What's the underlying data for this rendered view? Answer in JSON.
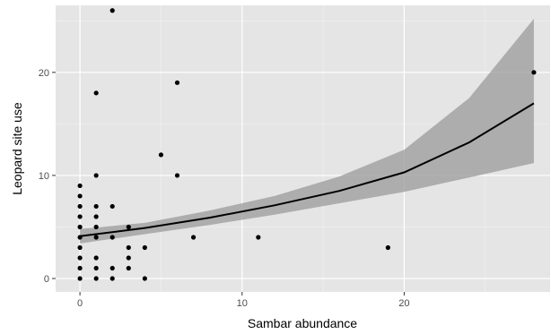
{
  "chart_data": {
    "type": "scatter",
    "xlabel": "Sambar abundance",
    "ylabel": "Leopard site use",
    "xlim": [
      -1.5,
      29
    ],
    "ylim": [
      -1.3,
      26.5
    ],
    "x_ticks": [
      0,
      10,
      20
    ],
    "y_ticks": [
      0,
      10,
      20
    ],
    "x_tick_labels": [
      "0",
      "10",
      "20"
    ],
    "y_tick_labels": [
      "0",
      "10",
      "20"
    ],
    "grid": true,
    "colors": {
      "panel": "#e5e5e5",
      "grid_major": "#ffffff",
      "grid_minor": "#f2f2f2",
      "points": "#000000",
      "ribbon": "#999999",
      "line": "#000000"
    },
    "points": [
      {
        "x": 0,
        "y": 0
      },
      {
        "x": 0,
        "y": 1
      },
      {
        "x": 0,
        "y": 2
      },
      {
        "x": 0,
        "y": 3
      },
      {
        "x": 0,
        "y": 4
      },
      {
        "x": 0,
        "y": 5
      },
      {
        "x": 0,
        "y": 6
      },
      {
        "x": 0,
        "y": 7
      },
      {
        "x": 0,
        "y": 8
      },
      {
        "x": 0,
        "y": 9
      },
      {
        "x": 1,
        "y": 0
      },
      {
        "x": 1,
        "y": 1
      },
      {
        "x": 1,
        "y": 2
      },
      {
        "x": 1,
        "y": 4
      },
      {
        "x": 1,
        "y": 5
      },
      {
        "x": 1,
        "y": 6
      },
      {
        "x": 1,
        "y": 7
      },
      {
        "x": 1,
        "y": 10
      },
      {
        "x": 1,
        "y": 18
      },
      {
        "x": 2,
        "y": 0
      },
      {
        "x": 2,
        "y": 1
      },
      {
        "x": 2,
        "y": 4
      },
      {
        "x": 2,
        "y": 7
      },
      {
        "x": 2,
        "y": 26
      },
      {
        "x": 3,
        "y": 1
      },
      {
        "x": 3,
        "y": 2
      },
      {
        "x": 3,
        "y": 3
      },
      {
        "x": 3,
        "y": 5
      },
      {
        "x": 4,
        "y": 0
      },
      {
        "x": 4,
        "y": 3
      },
      {
        "x": 5,
        "y": 12
      },
      {
        "x": 6,
        "y": 10
      },
      {
        "x": 6,
        "y": 19
      },
      {
        "x": 7,
        "y": 4
      },
      {
        "x": 11,
        "y": 4
      },
      {
        "x": 19,
        "y": 3
      },
      {
        "x": 28,
        "y": 20
      }
    ],
    "fit": {
      "x": [
        0,
        4,
        8,
        12,
        16,
        20,
        24,
        28
      ],
      "y": [
        4.1,
        4.9,
        5.9,
        7.1,
        8.5,
        10.3,
        13.2,
        17.0
      ],
      "lower": [
        3.4,
        4.3,
        5.2,
        6.2,
        7.3,
        8.4,
        9.8,
        11.2
      ],
      "upper": [
        4.8,
        5.4,
        6.6,
        8.0,
        9.9,
        12.5,
        17.5,
        25.2
      ]
    }
  }
}
